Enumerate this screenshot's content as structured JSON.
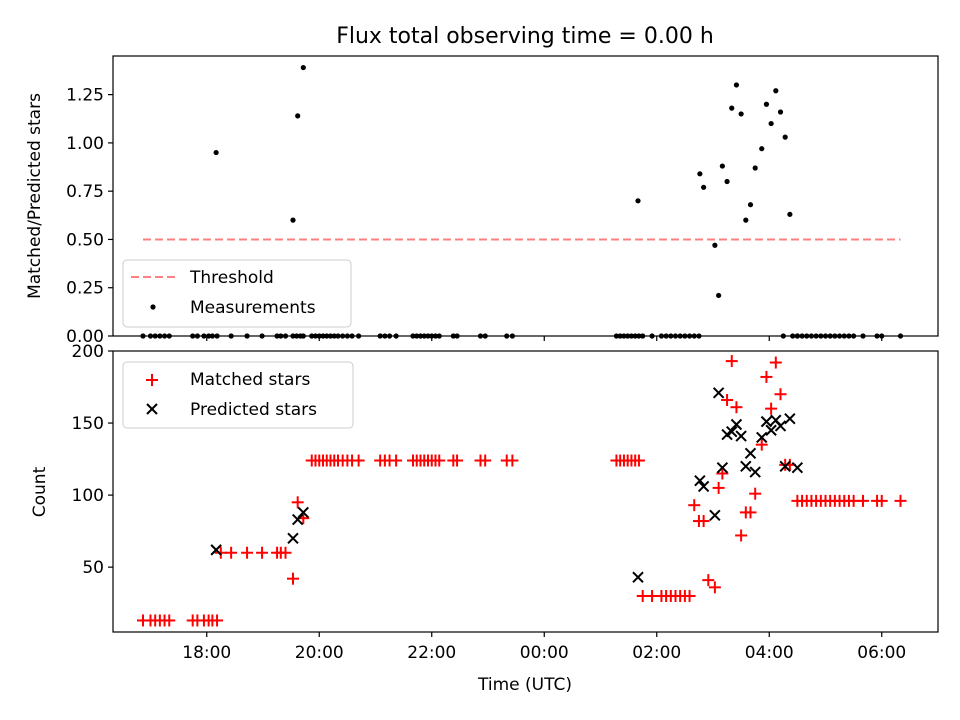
{
  "figure": {
    "title": "Flux total observing time = 0.00 h",
    "xlabel": "Time (UTC)"
  },
  "chart_data": [
    {
      "type": "scatter",
      "ylabel": "Matched/Predicted stars",
      "xlim": [
        "16:20",
        "31:00"
      ],
      "ylim": [
        0,
        1.45
      ],
      "x_ticks": [
        "18:00",
        "20:00",
        "22:00",
        "00:00",
        "02:00",
        "04:00",
        "06:00"
      ],
      "y_ticks": [
        {
          "value": 0.0,
          "label": "0.00"
        },
        {
          "value": 0.25,
          "label": "0.25"
        },
        {
          "value": 0.5,
          "label": "0.50"
        },
        {
          "value": 0.75,
          "label": "0.75"
        },
        {
          "value": 1.0,
          "label": "1.00"
        },
        {
          "value": 1.25,
          "label": "1.25"
        }
      ],
      "grid": false,
      "legend_position": "lower-left",
      "threshold": {
        "name": "Threshold",
        "value": 0.5,
        "x_range": [
          "16:52",
          "30:20"
        ],
        "color": "#ff8080"
      },
      "series": [
        {
          "name": "Measurements",
          "marker": "dot",
          "color": "#000000",
          "x": [
            "16:52",
            "17:00",
            "17:05",
            "17:10",
            "17:15",
            "17:20",
            "17:45",
            "17:50",
            "17:57",
            "18:02",
            "18:06",
            "18:11",
            "18:26",
            "18:43",
            "18:59",
            "19:15",
            "19:19",
            "19:24",
            "19:32",
            "19:36",
            "19:40",
            "19:43",
            "19:52",
            "19:56",
            "20:00",
            "20:04",
            "20:08",
            "20:12",
            "20:16",
            "20:20",
            "20:25",
            "20:30",
            "20:35",
            "20:42",
            "21:05",
            "21:10",
            "21:15",
            "21:22",
            "21:40",
            "21:44",
            "21:48",
            "21:52",
            "21:56",
            "22:00",
            "22:04",
            "22:08",
            "22:23",
            "22:27",
            "22:52",
            "22:57",
            "23:20",
            "23:26",
            "01:17",
            "01:21",
            "01:25",
            "01:29",
            "01:33",
            "01:37",
            "01:41",
            "01:45",
            "01:55",
            "02:05",
            "02:10",
            "02:15",
            "02:20",
            "02:25",
            "02:30",
            "02:35",
            "02:40",
            "02:45",
            "04:15",
            "04:25",
            "04:30",
            "04:35",
            "04:40",
            "04:45",
            "04:50",
            "04:55",
            "05:00",
            "05:05",
            "05:10",
            "05:15",
            "05:20",
            "05:25",
            "05:30",
            "05:40",
            "05:55",
            "06:00",
            "06:20",
            "18:10",
            "19:32",
            "19:37",
            "19:43",
            "01:40",
            "02:46",
            "02:50",
            "03:02",
            "03:06",
            "03:10",
            "03:15",
            "03:20",
            "03:25",
            "03:30",
            "03:35",
            "03:40",
            "03:45",
            "03:52",
            "03:57",
            "04:02",
            "04:07",
            "04:12",
            "04:17",
            "04:22",
            "04:30"
          ],
          "y": [
            0,
            0,
            0,
            0,
            0,
            0,
            0,
            0,
            0,
            0,
            0,
            0,
            0,
            0,
            0,
            0,
            0,
            0,
            0,
            0,
            0,
            0,
            0,
            0,
            0,
            0,
            0,
            0,
            0,
            0,
            0,
            0,
            0,
            0,
            0,
            0,
            0,
            0,
            0,
            0,
            0,
            0,
            0,
            0,
            0,
            0,
            0,
            0,
            0,
            0,
            0,
            0,
            0,
            0,
            0,
            0,
            0,
            0,
            0,
            0,
            0,
            0,
            0,
            0,
            0,
            0,
            0,
            0,
            0,
            0,
            0,
            0,
            0,
            0,
            0,
            0,
            0,
            0,
            0,
            0,
            0,
            0,
            0,
            0,
            0,
            0,
            0,
            0,
            0,
            0.95,
            0.6,
            1.14,
            1.39,
            0.7,
            0.84,
            0.77,
            0.47,
            0.21,
            0.88,
            0.8,
            1.18,
            1.3,
            1.15,
            0.6,
            0.68,
            0.87,
            0.97,
            1.2,
            1.1,
            1.27,
            1.16,
            1.03,
            0.63,
            0.0
          ]
        }
      ]
    },
    {
      "type": "scatter",
      "ylabel": "Count",
      "xlim": [
        "16:20",
        "31:00"
      ],
      "ylim": [
        5,
        200
      ],
      "x_ticks": [
        "18:00",
        "20:00",
        "22:00",
        "00:00",
        "02:00",
        "04:00",
        "06:00"
      ],
      "y_ticks": [
        {
          "value": 50,
          "label": "50"
        },
        {
          "value": 100,
          "label": "100"
        },
        {
          "value": 150,
          "label": "150"
        },
        {
          "value": 200,
          "label": "200"
        }
      ],
      "grid": false,
      "legend_position": "upper-left",
      "series": [
        {
          "name": "Matched stars",
          "marker": "plus",
          "color": "#ff0000",
          "x": [
            "16:52",
            "17:00",
            "17:05",
            "17:10",
            "17:15",
            "17:20",
            "17:45",
            "17:50",
            "17:57",
            "18:02",
            "18:06",
            "18:11",
            "18:15",
            "18:26",
            "18:43",
            "18:59",
            "19:15",
            "19:19",
            "19:24",
            "19:32",
            "19:37",
            "19:43",
            "19:52",
            "19:56",
            "20:00",
            "20:04",
            "20:08",
            "20:12",
            "20:16",
            "20:20",
            "20:25",
            "20:30",
            "20:35",
            "20:42",
            "21:05",
            "21:10",
            "21:15",
            "21:22",
            "21:40",
            "21:44",
            "21:48",
            "21:52",
            "21:56",
            "22:00",
            "22:04",
            "22:08",
            "22:23",
            "22:27",
            "22:52",
            "22:57",
            "23:20",
            "23:26",
            "01:17",
            "01:21",
            "01:25",
            "01:29",
            "01:33",
            "01:37",
            "01:41",
            "01:45",
            "01:55",
            "02:05",
            "02:10",
            "02:15",
            "02:20",
            "02:25",
            "02:30",
            "02:35",
            "02:40",
            "02:45",
            "02:50",
            "02:55",
            "03:02",
            "03:06",
            "03:10",
            "03:15",
            "03:20",
            "03:25",
            "03:30",
            "03:35",
            "03:40",
            "03:45",
            "03:52",
            "03:57",
            "04:02",
            "04:07",
            "04:12",
            "04:17",
            "04:22",
            "04:30",
            "04:35",
            "04:40",
            "04:45",
            "04:50",
            "04:55",
            "05:00",
            "05:05",
            "05:10",
            "05:15",
            "05:20",
            "05:25",
            "05:30",
            "05:40",
            "05:55",
            "06:00",
            "06:20"
          ],
          "y": [
            13,
            13,
            13,
            13,
            13,
            13,
            13,
            13,
            13,
            13,
            13,
            13,
            60,
            60,
            60,
            60,
            60,
            60,
            60,
            42,
            95,
            84,
            124,
            124,
            124,
            124,
            124,
            124,
            124,
            124,
            124,
            124,
            124,
            124,
            124,
            124,
            124,
            124,
            124,
            124,
            124,
            124,
            124,
            124,
            124,
            124,
            124,
            124,
            124,
            124,
            124,
            124,
            124,
            124,
            124,
            124,
            124,
            124,
            124,
            30,
            30,
            30,
            30,
            30,
            30,
            30,
            30,
            30,
            93,
            82,
            82,
            41,
            36,
            105,
            115,
            166,
            193,
            161,
            72,
            88,
            88,
            101,
            135,
            182,
            160,
            192,
            170,
            121,
            121,
            96,
            96,
            96,
            96,
            96,
            96,
            96,
            96,
            96,
            96,
            96,
            96,
            96,
            96,
            96,
            96,
            96
          ]
        },
        {
          "name": "Predicted stars",
          "marker": "x",
          "color": "#000000",
          "x": [
            "18:10",
            "19:32",
            "19:37",
            "19:43",
            "01:40",
            "02:46",
            "02:50",
            "03:02",
            "03:06",
            "03:10",
            "03:15",
            "03:20",
            "03:25",
            "03:30",
            "03:35",
            "03:40",
            "03:45",
            "03:52",
            "03:57",
            "04:02",
            "04:07",
            "04:12",
            "04:17",
            "04:22",
            "04:30"
          ],
          "y": [
            62,
            70,
            83,
            88,
            43,
            110,
            106,
            86,
            171,
            119,
            142,
            144,
            149,
            141,
            120,
            129,
            116,
            140,
            151,
            145,
            152,
            148,
            120,
            153,
            119
          ]
        }
      ]
    }
  ]
}
